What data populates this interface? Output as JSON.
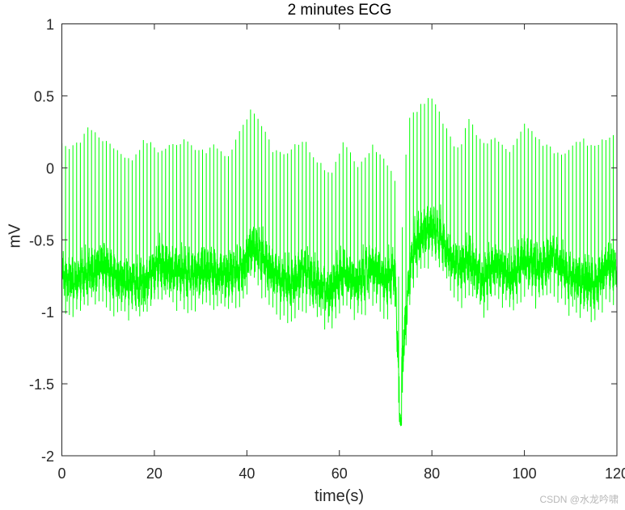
{
  "chart_data": {
    "type": "line",
    "title": "2 minutes ECG",
    "xlabel": "time(s)",
    "ylabel": "mV",
    "xlim": [
      0,
      120
    ],
    "ylim": [
      -2,
      1
    ],
    "xticks": [
      0,
      20,
      40,
      60,
      80,
      100,
      120
    ],
    "xtick_labels": [
      "0",
      "20",
      "40",
      "60",
      "80",
      "100",
      "120"
    ],
    "yticks": [
      1,
      0.5,
      0,
      -0.5,
      -1,
      -1.5,
      -2
    ],
    "ytick_labels": [
      "1",
      "0.5",
      "0",
      "-0.5",
      "-1",
      "-1.5",
      "-2"
    ],
    "grid": false,
    "legend": null,
    "series": [
      {
        "name": "ECG",
        "color": "#00ff00",
        "beat_interval_s": 0.8,
        "baseline_envelope": {
          "t": [
            0,
            3,
            6,
            9,
            12,
            15,
            18,
            21,
            24,
            27,
            30,
            33,
            36,
            39,
            41,
            43,
            46,
            49,
            52,
            55,
            58,
            61,
            64,
            67,
            70,
            72,
            73,
            74,
            75,
            76,
            78,
            80,
            82,
            84,
            86,
            88,
            91,
            94,
            97,
            100,
            103,
            106,
            109,
            112,
            115,
            118,
            120
          ],
          "v": [
            -0.75,
            -0.8,
            -0.72,
            -0.68,
            -0.78,
            -0.8,
            -0.8,
            -0.68,
            -0.7,
            -0.75,
            -0.72,
            -0.72,
            -0.75,
            -0.7,
            -0.55,
            -0.62,
            -0.75,
            -0.82,
            -0.72,
            -0.8,
            -0.88,
            -0.72,
            -0.82,
            -0.68,
            -0.8,
            -0.7,
            -1.6,
            -1.2,
            -0.8,
            -0.58,
            -0.45,
            -0.42,
            -0.48,
            -0.62,
            -0.72,
            -0.62,
            -0.8,
            -0.65,
            -0.78,
            -0.62,
            -0.72,
            -0.6,
            -0.75,
            -0.78,
            -0.82,
            -0.68,
            -0.72
          ]
        },
        "r_peak_envelope": {
          "t": [
            0,
            3,
            6,
            9,
            12,
            15,
            18,
            21,
            24,
            27,
            30,
            33,
            36,
            39,
            41,
            43,
            46,
            49,
            52,
            55,
            58,
            61,
            64,
            67,
            70,
            72,
            73,
            74,
            75,
            76,
            78,
            80,
            82,
            84,
            86,
            88,
            91,
            94,
            97,
            100,
            103,
            106,
            109,
            112,
            115,
            118,
            120
          ],
          "v": [
            0.15,
            0.15,
            0.28,
            0.18,
            0.12,
            0.05,
            0.2,
            0.12,
            0.15,
            0.2,
            0.1,
            0.15,
            0.08,
            0.28,
            0.42,
            0.3,
            0.1,
            0.12,
            0.2,
            0.05,
            -0.05,
            0.2,
            0.0,
            0.15,
            0.05,
            -0.1,
            -0.9,
            -0.1,
            0.35,
            0.38,
            0.45,
            0.5,
            0.35,
            0.2,
            0.12,
            0.35,
            0.15,
            0.2,
            0.1,
            0.3,
            0.2,
            0.12,
            0.08,
            0.2,
            0.15,
            0.2,
            0.25
          ]
        },
        "min_value": -1.8,
        "min_at_t": 73.2,
        "max_value": 0.52,
        "max_at_t": 79.5
      }
    ]
  },
  "figure": {
    "title": "2 minutes ECG",
    "xlabel": "time(s)",
    "ylabel": "mV",
    "watermark": "CSDN @水龙吟啸"
  }
}
